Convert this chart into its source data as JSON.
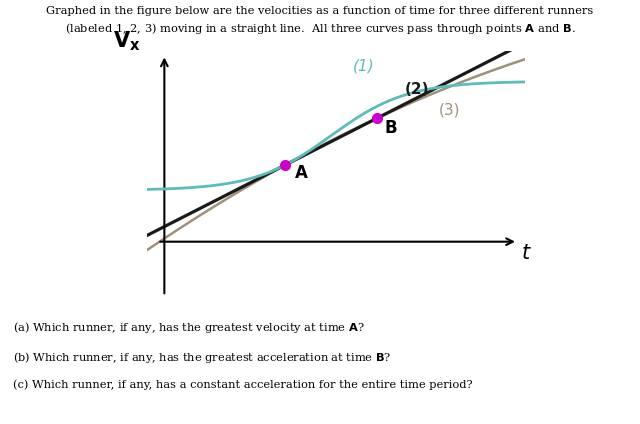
{
  "ylabel": "V_x",
  "xlabel": "t",
  "point_A": [
    0.35,
    0.42
  ],
  "point_B": [
    0.62,
    0.68
  ],
  "curve1_color": "#5bbcbb",
  "curve2_color": "#1a1a1a",
  "curve3_color": "#a0907a",
  "label1_color": "#5bbcbb",
  "label2_color": "#1a1a1a",
  "label3_color": "#a0907a",
  "point_color": "#cc00cc",
  "label_fontsize": 11,
  "axis_label_fontsize": 15,
  "fig_width": 6.4,
  "fig_height": 4.24
}
